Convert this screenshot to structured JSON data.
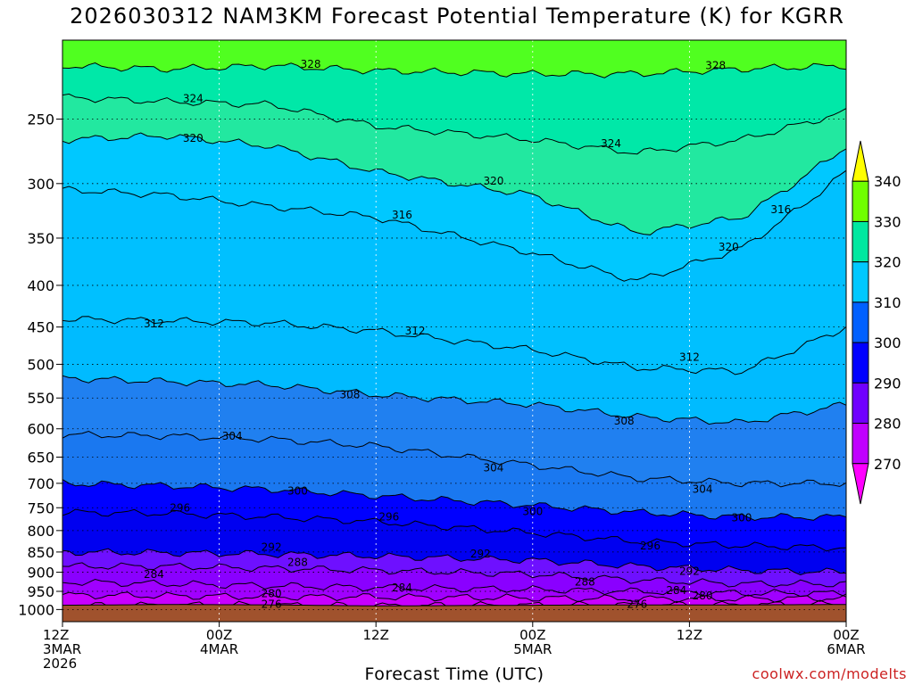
{
  "chart_data": {
    "type": "heatmap",
    "title": "2026030312 NAM3KM Forecast Potential Temperature (K) for KGRR",
    "xlabel": "Forecast Time (UTC)",
    "ylabel": "",
    "credit": "coolwx.com/modelts",
    "y_axis": {
      "scale": "log",
      "reversed": true,
      "range": [
        1035,
        200
      ],
      "ticks": [
        250,
        300,
        350,
        400,
        450,
        500,
        550,
        600,
        650,
        700,
        750,
        800,
        850,
        900,
        950,
        1000
      ]
    },
    "x_axis": {
      "range": [
        "2026-03-03 12Z",
        "2026-03-06 00Z"
      ],
      "ticks": [
        {
          "hour": 0,
          "lines": [
            "12Z",
            "3MAR",
            "2026"
          ]
        },
        {
          "hour": 12,
          "lines": [
            "00Z",
            "4MAR"
          ]
        },
        {
          "hour": 24,
          "lines": [
            "12Z"
          ]
        },
        {
          "hour": 36,
          "lines": [
            "00Z",
            "5MAR"
          ]
        },
        {
          "hour": 48,
          "lines": [
            "12Z"
          ]
        },
        {
          "hour": 60,
          "lines": [
            "00Z",
            "6MAR"
          ]
        }
      ]
    },
    "grid": true,
    "legend": {
      "placement": "right",
      "levels": [
        270,
        280,
        290,
        300,
        310,
        320,
        330,
        340
      ],
      "colors": [
        "#ff00ff",
        "#c000ff",
        "#7000ff",
        "#0000ff",
        "#0060ff",
        "#1f90ff",
        "#00c8ff",
        "#00e0a8",
        "#70ff00",
        "#ffff00"
      ]
    },
    "isotherm_levels": [
      276,
      280,
      284,
      288,
      292,
      296,
      300,
      304,
      308,
      312,
      316,
      320,
      324,
      328
    ],
    "isotherms": [
      {
        "level": 276,
        "pressures": [
          990,
          988,
          988,
          990,
          988,
          987,
          987,
          985
        ]
      },
      {
        "level": 280,
        "pressures": [
          960,
          962,
          965,
          965,
          968,
          970,
          970,
          968
        ]
      },
      {
        "level": 284,
        "pressures": [
          925,
          930,
          935,
          940,
          945,
          950,
          955,
          955
        ]
      },
      {
        "level": 288,
        "pressures": [
          885,
          885,
          890,
          895,
          905,
          920,
          930,
          930
        ]
      },
      {
        "level": 292,
        "pressures": [
          850,
          852,
          855,
          860,
          870,
          885,
          895,
          900
        ]
      },
      {
        "level": 296,
        "pressures": [
          760,
          762,
          770,
          780,
          805,
          825,
          835,
          840
        ]
      },
      {
        "level": 300,
        "pressures": [
          700,
          705,
          712,
          725,
          745,
          760,
          770,
          770
        ]
      },
      {
        "level": 304,
        "pressures": [
          610,
          612,
          618,
          630,
          665,
          690,
          700,
          700
        ]
      },
      {
        "level": 308,
        "pressures": [
          520,
          525,
          530,
          545,
          560,
          580,
          590,
          560
        ]
      },
      {
        "level": 312,
        "pressures": [
          440,
          442,
          445,
          455,
          480,
          505,
          510,
          450
        ]
      },
      {
        "level": 316,
        "pressures": [
          305,
          310,
          320,
          330,
          365,
          395,
          360,
          290
        ]
      },
      {
        "level": 320,
        "pressures": [
          265,
          262,
          270,
          290,
          310,
          345,
          330,
          270
        ]
      },
      {
        "level": 324,
        "pressures": [
          235,
          238,
          240,
          255,
          265,
          275,
          265,
          245
        ]
      },
      {
        "level": 328,
        "pressures": [
          215,
          217,
          215,
          218,
          220,
          220,
          217,
          215
        ]
      }
    ],
    "isotherm_hours": [
      0,
      8,
      16,
      24,
      36,
      44,
      52,
      60
    ],
    "contour_labels": [
      {
        "text": "328",
        "hour": 19,
        "pressure": 214
      },
      {
        "text": "328",
        "hour": 50,
        "pressure": 215
      },
      {
        "text": "324",
        "hour": 10,
        "pressure": 236
      },
      {
        "text": "324",
        "hour": 42,
        "pressure": 268
      },
      {
        "text": "320",
        "hour": 10,
        "pressure": 264
      },
      {
        "text": "320",
        "hour": 33,
        "pressure": 298
      },
      {
        "text": "320",
        "hour": 51,
        "pressure": 359
      },
      {
        "text": "316",
        "hour": 26,
        "pressure": 328
      },
      {
        "text": "316",
        "hour": 55,
        "pressure": 323
      },
      {
        "text": "312",
        "hour": 7,
        "pressure": 446
      },
      {
        "text": "312",
        "hour": 27,
        "pressure": 455
      },
      {
        "text": "312",
        "hour": 48,
        "pressure": 490
      },
      {
        "text": "308",
        "hour": 22,
        "pressure": 545
      },
      {
        "text": "308",
        "hour": 43,
        "pressure": 587
      },
      {
        "text": "304",
        "hour": 13,
        "pressure": 613
      },
      {
        "text": "304",
        "hour": 33,
        "pressure": 670
      },
      {
        "text": "304",
        "hour": 49,
        "pressure": 712
      },
      {
        "text": "300",
        "hour": 18,
        "pressure": 715
      },
      {
        "text": "300",
        "hour": 36,
        "pressure": 758
      },
      {
        "text": "300",
        "hour": 52,
        "pressure": 772
      },
      {
        "text": "296",
        "hour": 9,
        "pressure": 750
      },
      {
        "text": "296",
        "hour": 25,
        "pressure": 770
      },
      {
        "text": "296",
        "hour": 45,
        "pressure": 835
      },
      {
        "text": "292",
        "hour": 16,
        "pressure": 838
      },
      {
        "text": "292",
        "hour": 32,
        "pressure": 855
      },
      {
        "text": "292",
        "hour": 48,
        "pressure": 898
      },
      {
        "text": "288",
        "hour": 18,
        "pressure": 875
      },
      {
        "text": "288",
        "hour": 40,
        "pressure": 925
      },
      {
        "text": "284",
        "hour": 7,
        "pressure": 905
      },
      {
        "text": "284",
        "hour": 26,
        "pressure": 940
      },
      {
        "text": "284",
        "hour": 47,
        "pressure": 948
      },
      {
        "text": "280",
        "hour": 16,
        "pressure": 956
      },
      {
        "text": "280",
        "hour": 49,
        "pressure": 962
      },
      {
        "text": "276",
        "hour": 16,
        "pressure": 985
      },
      {
        "text": "276",
        "hour": 44,
        "pressure": 985
      }
    ],
    "surface_pressure": [
      988,
      986,
      987,
      990,
      988,
      987,
      987,
      986
    ]
  }
}
